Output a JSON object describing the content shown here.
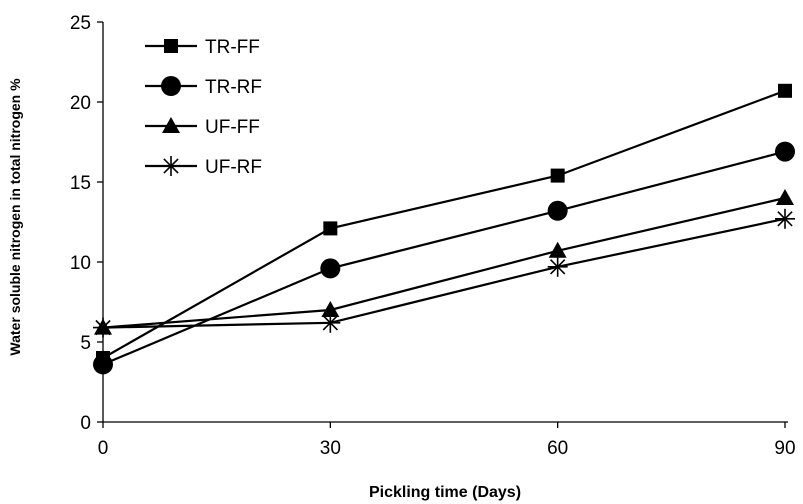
{
  "chart_data": {
    "type": "line",
    "xlabel": "Pickling time (Days)",
    "ylabel": "Water soluble nitrogen in total nitrogen %",
    "x": [
      0,
      30,
      60,
      90
    ],
    "xlim": [
      0,
      90
    ],
    "ylim": [
      0,
      25
    ],
    "x_ticks": [
      "0",
      "30",
      "60",
      "90"
    ],
    "y_ticks": [
      "0",
      "5",
      "10",
      "15",
      "20",
      "25"
    ],
    "grid": false,
    "legend_position": "top-left",
    "series": [
      {
        "name": "TR-FF",
        "marker": "square",
        "values": [
          4.0,
          12.1,
          15.4,
          20.7
        ]
      },
      {
        "name": "TR-RF",
        "marker": "circle",
        "values": [
          3.6,
          9.6,
          13.2,
          16.9
        ]
      },
      {
        "name": "UF-FF",
        "marker": "triangle",
        "values": [
          5.9,
          7.0,
          10.7,
          14.0
        ]
      },
      {
        "name": "UF-RF",
        "marker": "asterisk",
        "values": [
          5.9,
          6.2,
          9.7,
          12.7
        ]
      }
    ]
  }
}
